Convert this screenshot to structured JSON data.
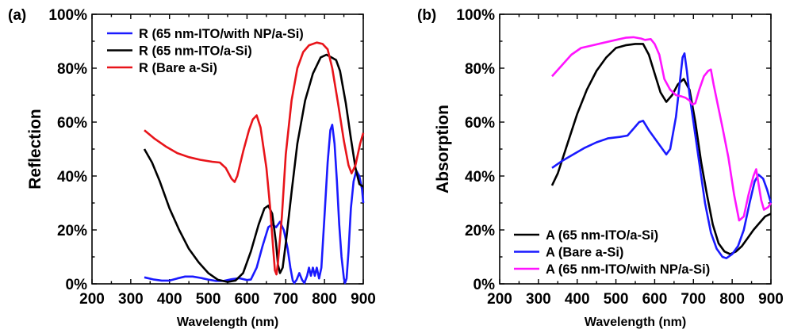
{
  "chart_data": [
    {
      "type": "line",
      "panel_label": "(a)",
      "xlabel": "Wavelength (nm)",
      "ylabel": "Reflection",
      "xlim": [
        200,
        900
      ],
      "ylim": [
        0,
        100
      ],
      "xticks": [
        "200",
        "300",
        "400",
        "500",
        "600",
        "700",
        "800",
        "900"
      ],
      "yticks": [
        "0%",
        "20%",
        "40%",
        "60%",
        "80%",
        "100%"
      ],
      "legend_position": "top",
      "series": [
        {
          "name": "R (65 nm-ITO/with NP/a-Si)",
          "color": "#1a1aff",
          "points": [
            [
              335,
              2.4
            ],
            [
              360,
              1.6
            ],
            [
              380,
              1.2
            ],
            [
              400,
              1.2
            ],
            [
              420,
              2
            ],
            [
              440,
              2.7
            ],
            [
              460,
              2.7
            ],
            [
              480,
              2.2
            ],
            [
              500,
              1.6
            ],
            [
              520,
              1.1
            ],
            [
              540,
              1.1
            ],
            [
              560,
              1.7
            ],
            [
              580,
              2.1
            ],
            [
              600,
              1.4
            ],
            [
              610,
              1.6
            ],
            [
              625,
              6
            ],
            [
              640,
              14
            ],
            [
              655,
              21
            ],
            [
              665,
              22
            ],
            [
              675,
              21
            ],
            [
              685,
              23
            ],
            [
              695,
              20
            ],
            [
              705,
              13
            ],
            [
              712,
              6
            ],
            [
              718,
              1.2
            ],
            [
              722,
              0.3
            ],
            [
              728,
              1.5
            ],
            [
              735,
              4
            ],
            [
              742,
              1.5
            ],
            [
              748,
              0.3
            ],
            [
              755,
              3
            ],
            [
              760,
              6
            ],
            [
              765,
              3
            ],
            [
              770,
              6
            ],
            [
              775,
              3
            ],
            [
              780,
              6
            ],
            [
              786,
              2
            ],
            [
              792,
              6
            ],
            [
              800,
              25
            ],
            [
              808,
              45
            ],
            [
              815,
              57
            ],
            [
              820,
              59
            ],
            [
              826,
              52
            ],
            [
              832,
              38
            ],
            [
              838,
              22
            ],
            [
              844,
              10
            ],
            [
              850,
              2
            ],
            [
              853,
              0.3
            ],
            [
              857,
              2
            ],
            [
              862,
              12
            ],
            [
              868,
              28
            ],
            [
              875,
              38
            ],
            [
              882,
              42
            ],
            [
              890,
              40
            ],
            [
              897,
              35
            ],
            [
              900,
              30
            ]
          ]
        },
        {
          "name": "R (65 nm-ITO/a-Si)",
          "color": "#000000",
          "points": [
            [
              335,
              50
            ],
            [
              355,
              45
            ],
            [
              375,
              38
            ],
            [
              400,
              28
            ],
            [
              425,
              20
            ],
            [
              450,
              13
            ],
            [
              475,
              8
            ],
            [
              500,
              4
            ],
            [
              525,
              1.5
            ],
            [
              550,
              0.7
            ],
            [
              570,
              1.2
            ],
            [
              590,
              4
            ],
            [
              610,
              12
            ],
            [
              630,
              22
            ],
            [
              645,
              28
            ],
            [
              655,
              29
            ],
            [
              665,
              26
            ],
            [
              675,
              15
            ],
            [
              680,
              7
            ],
            [
              685,
              4
            ],
            [
              692,
              6
            ],
            [
              700,
              15
            ],
            [
              715,
              34
            ],
            [
              730,
              52
            ],
            [
              750,
              68
            ],
            [
              770,
              78
            ],
            [
              790,
              84
            ],
            [
              805,
              85
            ],
            [
              818,
              84
            ],
            [
              830,
              83
            ],
            [
              840,
              79
            ],
            [
              855,
              67
            ],
            [
              868,
              54
            ],
            [
              880,
              43
            ],
            [
              890,
              37
            ],
            [
              900,
              36
            ]
          ]
        },
        {
          "name": "R (Bare a-Si)",
          "color": "#e8141a",
          "points": [
            [
              335,
              57
            ],
            [
              360,
              54
            ],
            [
              390,
              51
            ],
            [
              420,
              48.5
            ],
            [
              450,
              47
            ],
            [
              480,
              46
            ],
            [
              510,
              45.3
            ],
            [
              530,
              45
            ],
            [
              545,
              43
            ],
            [
              560,
              39
            ],
            [
              568,
              37.8
            ],
            [
              575,
              40
            ],
            [
              590,
              49
            ],
            [
              605,
              57
            ],
            [
              615,
              61
            ],
            [
              625,
              62.5
            ],
            [
              635,
              58
            ],
            [
              650,
              43
            ],
            [
              660,
              28
            ],
            [
              667,
              14
            ],
            [
              672,
              5
            ],
            [
              676,
              3.5
            ],
            [
              680,
              8
            ],
            [
              690,
              25
            ],
            [
              700,
              48
            ],
            [
              715,
              68
            ],
            [
              730,
              80
            ],
            [
              745,
              86
            ],
            [
              760,
              88.5
            ],
            [
              780,
              89.5
            ],
            [
              795,
              89
            ],
            [
              808,
              87
            ],
            [
              820,
              80
            ],
            [
              835,
              67
            ],
            [
              850,
              53
            ],
            [
              862,
              44
            ],
            [
              870,
              41
            ],
            [
              880,
              44
            ],
            [
              892,
              52
            ],
            [
              900,
              56
            ]
          ]
        }
      ]
    },
    {
      "type": "line",
      "panel_label": "(b)",
      "xlabel": "Wavelength (nm)",
      "ylabel": "Absorption",
      "xlim": [
        200,
        900
      ],
      "ylim": [
        0,
        100
      ],
      "xticks": [
        "200",
        "300",
        "400",
        "500",
        "600",
        "700",
        "800",
        "900"
      ],
      "yticks": [
        "0%",
        "20%",
        "40%",
        "60%",
        "80%",
        "100%"
      ],
      "legend_position": "bottom-left",
      "series": [
        {
          "name": "A (65 nm-ITO/a-Si)",
          "color": "#000000",
          "points": [
            [
              335,
              36.5
            ],
            [
              350,
              41
            ],
            [
              375,
              52
            ],
            [
              400,
              63
            ],
            [
              425,
              72
            ],
            [
              450,
              79
            ],
            [
              475,
              84
            ],
            [
              500,
              87.5
            ],
            [
              525,
              88.5
            ],
            [
              550,
              89
            ],
            [
              570,
              89
            ],
            [
              585,
              85
            ],
            [
              600,
              78
            ],
            [
              615,
              71
            ],
            [
              630,
              67.5
            ],
            [
              645,
              70
            ],
            [
              660,
              74
            ],
            [
              675,
              76
            ],
            [
              690,
              72
            ],
            [
              705,
              60
            ],
            [
              720,
              45
            ],
            [
              735,
              33
            ],
            [
              750,
              22
            ],
            [
              765,
              15
            ],
            [
              780,
              12
            ],
            [
              795,
              11
            ],
            [
              810,
              12
            ],
            [
              825,
              14
            ],
            [
              840,
              17
            ],
            [
              855,
              20
            ],
            [
              870,
              22.5
            ],
            [
              885,
              25
            ],
            [
              900,
              26
            ]
          ]
        },
        {
          "name": "A (Bare a-Si)",
          "color": "#1a1aff",
          "points": [
            [
              335,
              43
            ],
            [
              360,
              45.5
            ],
            [
              390,
              48
            ],
            [
              420,
              50.5
            ],
            [
              450,
              52.5
            ],
            [
              480,
              54
            ],
            [
              510,
              54.5
            ],
            [
              530,
              55
            ],
            [
              545,
              57.5
            ],
            [
              560,
              60
            ],
            [
              570,
              60.5
            ],
            [
              585,
              57
            ],
            [
              600,
              54
            ],
            [
              615,
              51
            ],
            [
              630,
              48
            ],
            [
              640,
              50
            ],
            [
              655,
              62
            ],
            [
              665,
              75
            ],
            [
              672,
              84
            ],
            [
              677,
              85.5
            ],
            [
              683,
              79
            ],
            [
              690,
              70
            ],
            [
              700,
              60
            ],
            [
              715,
              45
            ],
            [
              730,
              30
            ],
            [
              745,
              19
            ],
            [
              760,
              13
            ],
            [
              775,
              10
            ],
            [
              785,
              9.5
            ],
            [
              800,
              11
            ],
            [
              815,
              14
            ],
            [
              830,
              20
            ],
            [
              845,
              30
            ],
            [
              858,
              38
            ],
            [
              868,
              40.5
            ],
            [
              880,
              39
            ],
            [
              890,
              35
            ],
            [
              900,
              30
            ]
          ]
        },
        {
          "name": "A (65 nm-ITO/with NP/a-Si)",
          "color": "#ff14ff",
          "points": [
            [
              335,
              77
            ],
            [
              360,
              81
            ],
            [
              385,
              85
            ],
            [
              410,
              87.5
            ],
            [
              440,
              88.5
            ],
            [
              470,
              89.5
            ],
            [
              500,
              90.5
            ],
            [
              525,
              91.3
            ],
            [
              545,
              91.5
            ],
            [
              565,
              91
            ],
            [
              575,
              90.5
            ],
            [
              590,
              90.8
            ],
            [
              600,
              89
            ],
            [
              612,
              85
            ],
            [
              625,
              76
            ],
            [
              640,
              72
            ],
            [
              655,
              70
            ],
            [
              670,
              69.5
            ],
            [
              680,
              69
            ],
            [
              690,
              68
            ],
            [
              697,
              66.5
            ],
            [
              705,
              67
            ],
            [
              715,
              72
            ],
            [
              727,
              77
            ],
            [
              738,
              79
            ],
            [
              745,
              79.5
            ],
            [
              752,
              74
            ],
            [
              762,
              67
            ],
            [
              775,
              58
            ],
            [
              790,
              47
            ],
            [
              805,
              33
            ],
            [
              818,
              23.5
            ],
            [
              830,
              25
            ],
            [
              842,
              33
            ],
            [
              855,
              40
            ],
            [
              862,
              42.5
            ],
            [
              868,
              37
            ],
            [
              875,
              31
            ],
            [
              882,
              27.5
            ],
            [
              893,
              28.5
            ],
            [
              900,
              30
            ]
          ]
        }
      ]
    }
  ]
}
